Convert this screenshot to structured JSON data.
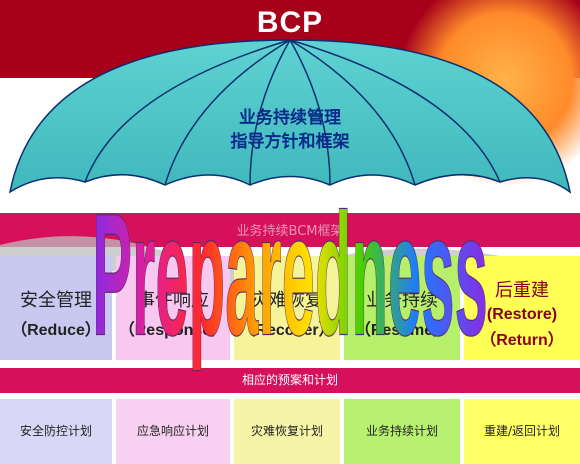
{
  "title": "BCP",
  "umbrella": {
    "line1": "业务持续管理",
    "line2": "指导方针和框架"
  },
  "band_label": "业务持续BCM框架",
  "preparedness": "Preparedness",
  "phases": [
    {
      "cn": "安全管理",
      "en": "（Reduce）",
      "color": "#c8c8f0"
    },
    {
      "cn": "事件响应",
      "en": "（Response）",
      "color": "#f8c8f0"
    },
    {
      "cn": "灾难恢复",
      "en": "（Recover）",
      "color": "#f6f49a"
    },
    {
      "cn": "业务持续",
      "en": "（Resume）",
      "color": "#b6f06a"
    },
    {
      "cn": "后重建",
      "en": "(Restore)",
      "en2": "（Return）",
      "color": "#ffff55"
    }
  ],
  "plan_header": "相应的预案和计划",
  "plans": [
    {
      "label": "安全防控计划",
      "color": "#d8d8f6"
    },
    {
      "label": "应急响应计划",
      "color": "#f8d0f2"
    },
    {
      "label": "灾难恢复计划",
      "color": "#f6f4a6"
    },
    {
      "label": "业务持续计划",
      "color": "#b8f070"
    },
    {
      "label": "重建/返回计划",
      "color": "#ffff66"
    }
  ]
}
